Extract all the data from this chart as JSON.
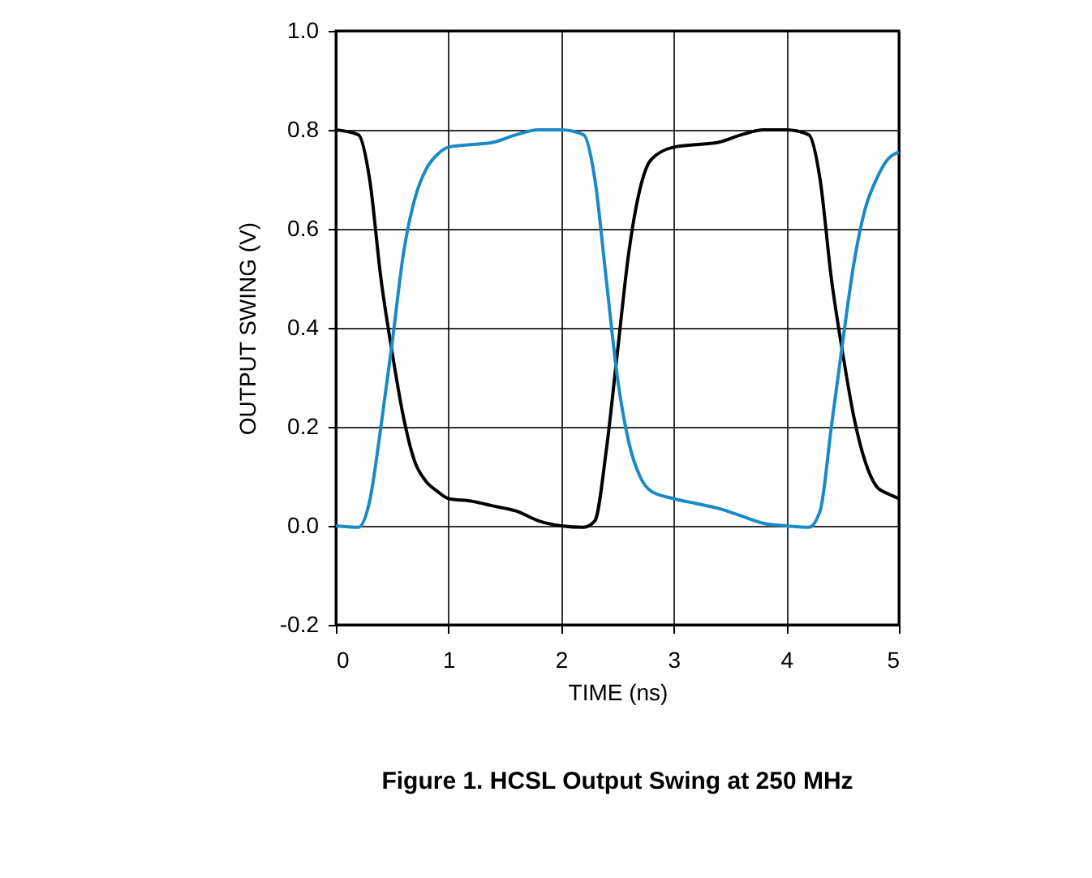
{
  "chart_data": {
    "type": "line",
    "title": "Figure 1. HCSL Output Swing at 250 MHz",
    "xlabel": "TIME (ns)",
    "ylabel": "OUTPUT SWING (V)",
    "xlim": [
      0,
      5
    ],
    "xticks": [
      0,
      1,
      2,
      3,
      4,
      5
    ],
    "ylim": [
      -0.2,
      1.0
    ],
    "yticks": [
      {
        "value": -0.2,
        "label": "-0.2"
      },
      {
        "value": 0.0,
        "label": "0.0"
      },
      {
        "value": 0.2,
        "label": "0.2"
      },
      {
        "value": 0.4,
        "label": "0.4"
      },
      {
        "value": 0.6,
        "label": "0.6"
      },
      {
        "value": 0.8,
        "label": "0.8"
      },
      {
        "value": 1.0,
        "label": "1.0"
      }
    ],
    "grid": true,
    "legend": false,
    "marker": "none",
    "line_style": "solid",
    "series": [
      {
        "color": "#000000",
        "x": [
          0,
          0.2,
          0.3,
          0.4,
          0.5,
          0.6,
          0.7,
          0.8,
          0.9,
          1.0,
          1.2,
          1.4,
          1.6,
          1.8,
          2.0,
          2.2,
          2.3,
          2.4,
          2.5,
          2.6,
          2.7,
          2.8,
          3.0,
          3.2,
          3.4,
          3.6,
          3.8,
          4.0,
          4.2,
          4.3,
          4.4,
          4.5,
          4.6,
          4.7,
          4.8,
          4.9,
          5.0
        ],
        "values": [
          0.8,
          0.79,
          0.7,
          0.5,
          0.35,
          0.22,
          0.13,
          0.09,
          0.07,
          0.055,
          0.05,
          0.04,
          0.03,
          0.01,
          0.0,
          -0.003,
          0.01,
          0.15,
          0.35,
          0.55,
          0.68,
          0.74,
          0.765,
          0.77,
          0.775,
          0.79,
          0.8,
          0.8,
          0.79,
          0.7,
          0.5,
          0.35,
          0.22,
          0.13,
          0.08,
          0.065,
          0.055
        ]
      },
      {
        "color": "#1a8ac6",
        "x": [
          0,
          0.2,
          0.3,
          0.4,
          0.5,
          0.6,
          0.7,
          0.8,
          0.9,
          1.0,
          1.2,
          1.4,
          1.6,
          1.8,
          2.0,
          2.2,
          2.3,
          2.4,
          2.5,
          2.6,
          2.7,
          2.8,
          3.0,
          3.2,
          3.4,
          3.6,
          3.8,
          4.0,
          4.2,
          4.3,
          4.4,
          4.5,
          4.6,
          4.7,
          4.8,
          4.9,
          5.0
        ],
        "values": [
          0.0,
          -0.003,
          0.05,
          0.2,
          0.37,
          0.55,
          0.66,
          0.72,
          0.75,
          0.765,
          0.77,
          0.775,
          0.79,
          0.8,
          0.8,
          0.79,
          0.7,
          0.5,
          0.3,
          0.17,
          0.1,
          0.07,
          0.055,
          0.045,
          0.035,
          0.02,
          0.005,
          0.0,
          -0.003,
          0.03,
          0.2,
          0.37,
          0.53,
          0.64,
          0.7,
          0.74,
          0.755
        ]
      }
    ]
  }
}
